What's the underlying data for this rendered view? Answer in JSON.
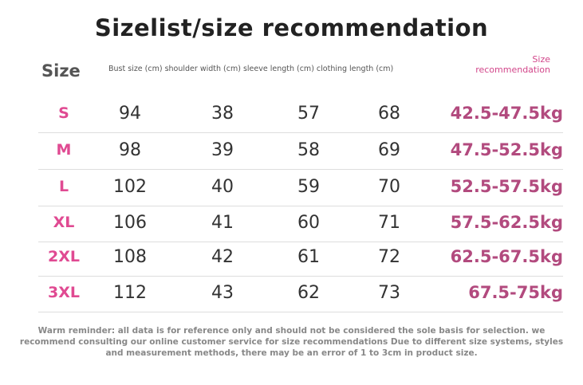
{
  "title": "Sizelist/size recommendation",
  "header": {
    "size": "Size",
    "columns": "Bust size (cm) shoulder width (cm) sleeve length (cm) clothing length (cm)",
    "recommendation_line1": "Size",
    "recommendation_line2": "recommendation"
  },
  "rows": [
    {
      "size": "S",
      "bust": "94",
      "shoulder": "38",
      "sleeve": "57",
      "length": "68",
      "weight": "42.5-47.5kg"
    },
    {
      "size": "M",
      "bust": "98",
      "shoulder": "39",
      "sleeve": "58",
      "length": "69",
      "weight": "47.5-52.5kg"
    },
    {
      "size": "L",
      "bust": "102",
      "shoulder": "40",
      "sleeve": "59",
      "length": "70",
      "weight": "52.5-57.5kg"
    },
    {
      "size": "XL",
      "bust": "106",
      "shoulder": "41",
      "sleeve": "60",
      "length": "71",
      "weight": "57.5-62.5kg"
    },
    {
      "size": "2XL",
      "bust": "108",
      "shoulder": "42",
      "sleeve": "61",
      "length": "72",
      "weight": "62.5-67.5kg"
    },
    {
      "size": "3XL",
      "bust": "112",
      "shoulder": "43",
      "sleeve": "62",
      "length": "73",
      "weight": "67.5-75kg"
    }
  ],
  "note": "Warm reminder: all data is for reference only and should not be considered the sole basis for selection. we recommend consulting our online customer service for size recommendations Due to different size systems, styles and measurement methods, there may be an error of 1 to 3cm in product size.",
  "colors": {
    "size_label": "#e04a92",
    "weight": "#b24a7e",
    "header_rec": "#d2468a"
  }
}
